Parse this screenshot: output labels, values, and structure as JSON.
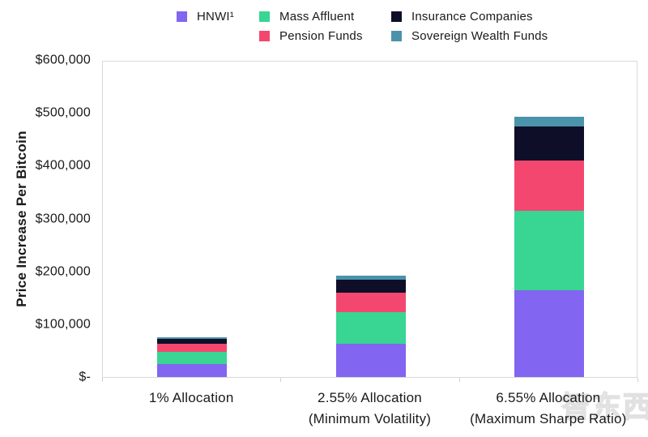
{
  "chart_data": {
    "type": "bar",
    "stacked": true,
    "title": "",
    "ylabel": "Price Increase Per Bitcoin",
    "xlabel": "",
    "ylim": [
      0,
      600000
    ],
    "grid": false,
    "legend_position": "top",
    "plot_border_color": "#d9d9d9",
    "text_color": "#1a1a1a",
    "y_ticks": [
      {
        "value": 600000,
        "label": "$600,000"
      },
      {
        "value": 500000,
        "label": "$500,000"
      },
      {
        "value": 400000,
        "label": "$400,000"
      },
      {
        "value": 300000,
        "label": "$300,000"
      },
      {
        "value": 200000,
        "label": "$200,000"
      },
      {
        "value": 100000,
        "label": "$100,000"
      },
      {
        "value": 0,
        "label": "$-"
      }
    ],
    "categories": [
      {
        "line1": "1% Allocation",
        "line2": ""
      },
      {
        "line1": "2.55% Allocation",
        "line2": "(Minimum Volatility)"
      },
      {
        "line1": "6.55% Allocation",
        "line2": "(Maximum Sharpe Ratio)"
      }
    ],
    "series": [
      {
        "name": "HNWI¹",
        "color": "#8265f0",
        "values": [
          25000,
          63750,
          163750
        ]
      },
      {
        "name": "Mass Affluent",
        "color": "#38d593",
        "values": [
          23000,
          58650,
          150650
        ]
      },
      {
        "name": "Pension Funds",
        "color": "#f4476f",
        "values": [
          14500,
          36975,
          94975
        ]
      },
      {
        "name": "Insurance Companies",
        "color": "#0e0e28",
        "values": [
          10000,
          25500,
          65500
        ]
      },
      {
        "name": "Sovereign Wealth Funds",
        "color": "#4a93ab",
        "values": [
          2700,
          6885,
          17685
        ]
      }
    ],
    "legend_rows": [
      [
        "HNWI¹",
        "Mass Affluent",
        "Insurance Companies"
      ],
      [
        "",
        "Pension Funds",
        "Sovereign Wealth Funds"
      ]
    ]
  },
  "watermark": {
    "text": "智东西"
  }
}
